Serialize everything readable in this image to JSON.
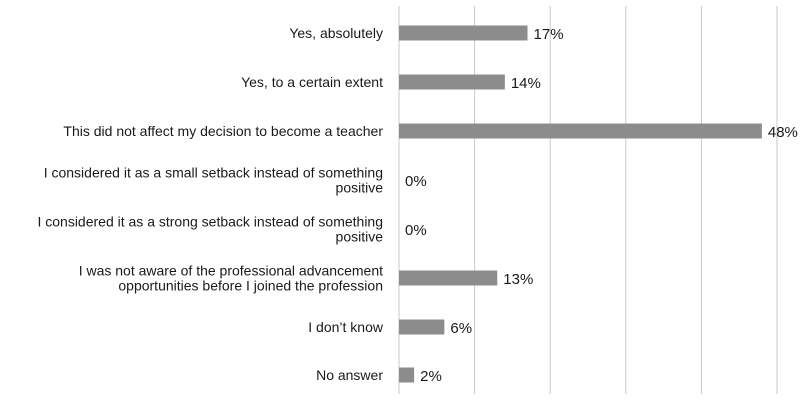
{
  "chart_data": {
    "type": "bar",
    "orientation": "horizontal",
    "categories": [
      [
        "Yes, absolutely"
      ],
      [
        "Yes, to a certain extent"
      ],
      [
        "This did not affect my decision to become a teacher"
      ],
      [
        "I considered it as a small setback instead of something",
        "positive"
      ],
      [
        "I considered it as a strong setback instead of something",
        "positive"
      ],
      [
        "I was not aware of the professional advancement",
        "opportunities before I joined the profession"
      ],
      [
        "I don’t know"
      ],
      [
        "No answer"
      ]
    ],
    "values": [
      17,
      14,
      48,
      0,
      0,
      13,
      6,
      2
    ],
    "value_labels": [
      "17%",
      "14%",
      "48%",
      "0%",
      "0%",
      "13%",
      "6%",
      "2%"
    ],
    "xlim": [
      0,
      50
    ],
    "x_gridlines": [
      0,
      10,
      20,
      30,
      40,
      50
    ],
    "grid": "vertical",
    "bar_color": "#8c8c8c",
    "grid_color": "#c8c8c8",
    "text_color": "#1a1a1a"
  }
}
